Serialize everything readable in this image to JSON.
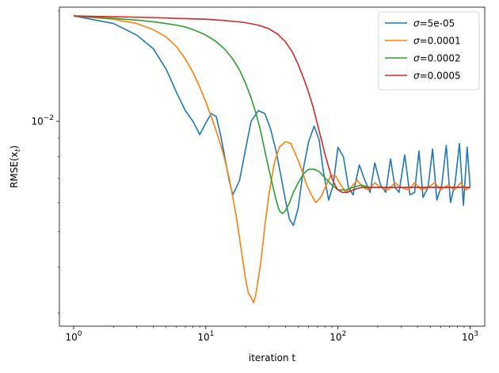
{
  "chart_data": {
    "type": "line",
    "title": "",
    "xlabel": "iteration t",
    "ylabel_main": "RMSE(x",
    "ylabel_sub": "t",
    "ylabel_close": ")",
    "xscale": "log",
    "yscale": "log",
    "xlim": [
      0.78,
      1290
    ],
    "ylim": [
      0.00276,
      0.0205
    ],
    "grid": false,
    "legend_position": "top-right",
    "x_ticks": [
      {
        "value": 1,
        "base": "10",
        "exp": "0"
      },
      {
        "value": 10,
        "base": "10",
        "exp": "1"
      },
      {
        "value": 100,
        "base": "10",
        "exp": "2"
      },
      {
        "value": 1000,
        "base": "10",
        "exp": "3"
      }
    ],
    "y_ticks": [
      {
        "value": 0.01,
        "base": "10",
        "exp": "−2"
      }
    ],
    "series": [
      {
        "name": "σ=5e-05",
        "legend_symbol": "σ",
        "legend_value": "=5e-05",
        "color": "#1f77b4",
        "points": [
          [
            1,
            0.0194
          ],
          [
            2,
            0.0185
          ],
          [
            3,
            0.0172
          ],
          [
            4,
            0.0158
          ],
          [
            5,
            0.0139
          ],
          [
            6,
            0.012
          ],
          [
            7,
            0.0107
          ],
          [
            8,
            0.01
          ],
          [
            9,
            0.0092
          ],
          [
            10,
            0.0099
          ],
          [
            11,
            0.0105
          ],
          [
            12,
            0.0103
          ],
          [
            13,
            0.0091
          ],
          [
            14,
            0.0079
          ],
          [
            15,
            0.0069
          ],
          [
            16,
            0.0063
          ],
          [
            18,
            0.0069
          ],
          [
            20,
            0.0084
          ],
          [
            22,
            0.01
          ],
          [
            25,
            0.0107
          ],
          [
            28,
            0.0105
          ],
          [
            31,
            0.0095
          ],
          [
            34,
            0.0083
          ],
          [
            37,
            0.0071
          ],
          [
            40,
            0.0061
          ],
          [
            43,
            0.0054
          ],
          [
            46,
            0.0052
          ],
          [
            50,
            0.0058
          ],
          [
            55,
            0.0075
          ],
          [
            60,
            0.0088
          ],
          [
            66,
            0.0097
          ],
          [
            72,
            0.0089
          ],
          [
            78,
            0.0072
          ],
          [
            85,
            0.0061
          ],
          [
            92,
            0.0067
          ],
          [
            100,
            0.0085
          ],
          [
            110,
            0.008
          ],
          [
            120,
            0.0066
          ],
          [
            130,
            0.0063
          ],
          [
            145,
            0.0076
          ],
          [
            160,
            0.0069
          ],
          [
            175,
            0.0064
          ],
          [
            190,
            0.0077
          ],
          [
            210,
            0.0067
          ],
          [
            230,
            0.0064
          ],
          [
            250,
            0.0079
          ],
          [
            270,
            0.0066
          ],
          [
            290,
            0.0064
          ],
          [
            320,
            0.0081
          ],
          [
            350,
            0.0063
          ],
          [
            380,
            0.0064
          ],
          [
            410,
            0.0083
          ],
          [
            440,
            0.0062
          ],
          [
            480,
            0.0066
          ],
          [
            520,
            0.0084
          ],
          [
            560,
            0.0061
          ],
          [
            610,
            0.0067
          ],
          [
            660,
            0.0086
          ],
          [
            710,
            0.006
          ],
          [
            770,
            0.0068
          ],
          [
            830,
            0.0087
          ],
          [
            890,
            0.0059
          ],
          [
            950,
            0.0085
          ],
          [
            1000,
            0.0066
          ]
        ]
      },
      {
        "name": "σ=0.0001",
        "legend_symbol": "σ",
        "legend_value": "=0.0001",
        "color": "#ff7f0e",
        "points": [
          [
            1,
            0.0194
          ],
          [
            2,
            0.019
          ],
          [
            3,
            0.0185
          ],
          [
            4,
            0.0178
          ],
          [
            5,
            0.017
          ],
          [
            6,
            0.016
          ],
          [
            7,
            0.0148
          ],
          [
            8,
            0.0136
          ],
          [
            9,
            0.0124
          ],
          [
            10,
            0.0113
          ],
          [
            11,
            0.0103
          ],
          [
            12,
            0.0094
          ],
          [
            13,
            0.0086
          ],
          [
            14,
            0.0078
          ],
          [
            15,
            0.007
          ],
          [
            16,
            0.0062
          ],
          [
            17,
            0.0055
          ],
          [
            18,
            0.0048
          ],
          [
            19,
            0.0042
          ],
          [
            20,
            0.0037
          ],
          [
            21,
            0.0034
          ],
          [
            22,
            0.0033
          ],
          [
            23,
            0.0032
          ],
          [
            24,
            0.0034
          ],
          [
            26,
            0.0041
          ],
          [
            28,
            0.0052
          ],
          [
            30,
            0.0063
          ],
          [
            33,
            0.0077
          ],
          [
            36,
            0.0085
          ],
          [
            40,
            0.0088
          ],
          [
            44,
            0.0087
          ],
          [
            48,
            0.0081
          ],
          [
            53,
            0.0074
          ],
          [
            58,
            0.0067
          ],
          [
            63,
            0.0063
          ],
          [
            68,
            0.006
          ],
          [
            74,
            0.0062
          ],
          [
            80,
            0.0066
          ],
          [
            88,
            0.0071
          ],
          [
            96,
            0.0071
          ],
          [
            105,
            0.0067
          ],
          [
            115,
            0.0064
          ],
          [
            125,
            0.0066
          ],
          [
            140,
            0.0069
          ],
          [
            155,
            0.0066
          ],
          [
            170,
            0.0065
          ],
          [
            190,
            0.0068
          ],
          [
            210,
            0.0066
          ],
          [
            240,
            0.0065
          ],
          [
            270,
            0.0068
          ],
          [
            300,
            0.0066
          ],
          [
            340,
            0.0065
          ],
          [
            380,
            0.0068
          ],
          [
            430,
            0.0065
          ],
          [
            480,
            0.0066
          ],
          [
            540,
            0.0068
          ],
          [
            600,
            0.0065
          ],
          [
            680,
            0.0067
          ],
          [
            760,
            0.0065
          ],
          [
            850,
            0.0068
          ],
          [
            930,
            0.0065
          ],
          [
            1000,
            0.0066
          ]
        ]
      },
      {
        "name": "σ=0.0002",
        "legend_symbol": "σ",
        "legend_value": "=0.0002",
        "color": "#2ca02c",
        "points": [
          [
            1,
            0.0194
          ],
          [
            2,
            0.0191
          ],
          [
            3,
            0.0189
          ],
          [
            4,
            0.0187
          ],
          [
            5,
            0.0185
          ],
          [
            6,
            0.0183
          ],
          [
            7,
            0.0181
          ],
          [
            8,
            0.0178
          ],
          [
            9,
            0.0175
          ],
          [
            10,
            0.0172
          ],
          [
            12,
            0.0165
          ],
          [
            14,
            0.0157
          ],
          [
            16,
            0.0148
          ],
          [
            18,
            0.0138
          ],
          [
            20,
            0.0127
          ],
          [
            22,
            0.0116
          ],
          [
            24,
            0.0105
          ],
          [
            26,
            0.0094
          ],
          [
            28,
            0.0083
          ],
          [
            30,
            0.0074
          ],
          [
            32,
            0.0067
          ],
          [
            34,
            0.0061
          ],
          [
            36,
            0.0057
          ],
          [
            38,
            0.0056
          ],
          [
            40,
            0.0057
          ],
          [
            43,
            0.006
          ],
          [
            46,
            0.0064
          ],
          [
            50,
            0.0068
          ],
          [
            55,
            0.0072
          ],
          [
            60,
            0.0074
          ],
          [
            66,
            0.0074
          ],
          [
            72,
            0.0073
          ],
          [
            80,
            0.007
          ],
          [
            90,
            0.0067
          ],
          [
            100,
            0.0065
          ],
          [
            115,
            0.0065
          ],
          [
            130,
            0.0066
          ],
          [
            150,
            0.0067
          ],
          [
            175,
            0.0066
          ],
          [
            200,
            0.0066
          ],
          [
            250,
            0.0066
          ],
          [
            300,
            0.0066
          ],
          [
            400,
            0.0066
          ],
          [
            500,
            0.0066
          ],
          [
            700,
            0.0066
          ],
          [
            1000,
            0.0066
          ]
        ]
      },
      {
        "name": "σ=0.0005",
        "legend_symbol": "σ",
        "legend_value": "=0.0005",
        "color": "#d62728",
        "points": [
          [
            1,
            0.0194
          ],
          [
            2,
            0.0193
          ],
          [
            4,
            0.0192
          ],
          [
            6,
            0.0191
          ],
          [
            10,
            0.019
          ],
          [
            15,
            0.0188
          ],
          [
            20,
            0.0186
          ],
          [
            25,
            0.0183
          ],
          [
            30,
            0.0179
          ],
          [
            35,
            0.0173
          ],
          [
            40,
            0.0165
          ],
          [
            45,
            0.0155
          ],
          [
            50,
            0.0143
          ],
          [
            55,
            0.0131
          ],
          [
            60,
            0.012
          ],
          [
            65,
            0.0109
          ],
          [
            70,
            0.0098
          ],
          [
            75,
            0.0089
          ],
          [
            80,
            0.0081
          ],
          [
            85,
            0.0075
          ],
          [
            90,
            0.007
          ],
          [
            95,
            0.0067
          ],
          [
            100,
            0.0065
          ],
          [
            108,
            0.0064
          ],
          [
            118,
            0.0064
          ],
          [
            130,
            0.0065
          ],
          [
            150,
            0.0066
          ],
          [
            180,
            0.0066
          ],
          [
            250,
            0.0066
          ],
          [
            400,
            0.0066
          ],
          [
            600,
            0.0066
          ],
          [
            1000,
            0.0066
          ]
        ]
      }
    ]
  }
}
